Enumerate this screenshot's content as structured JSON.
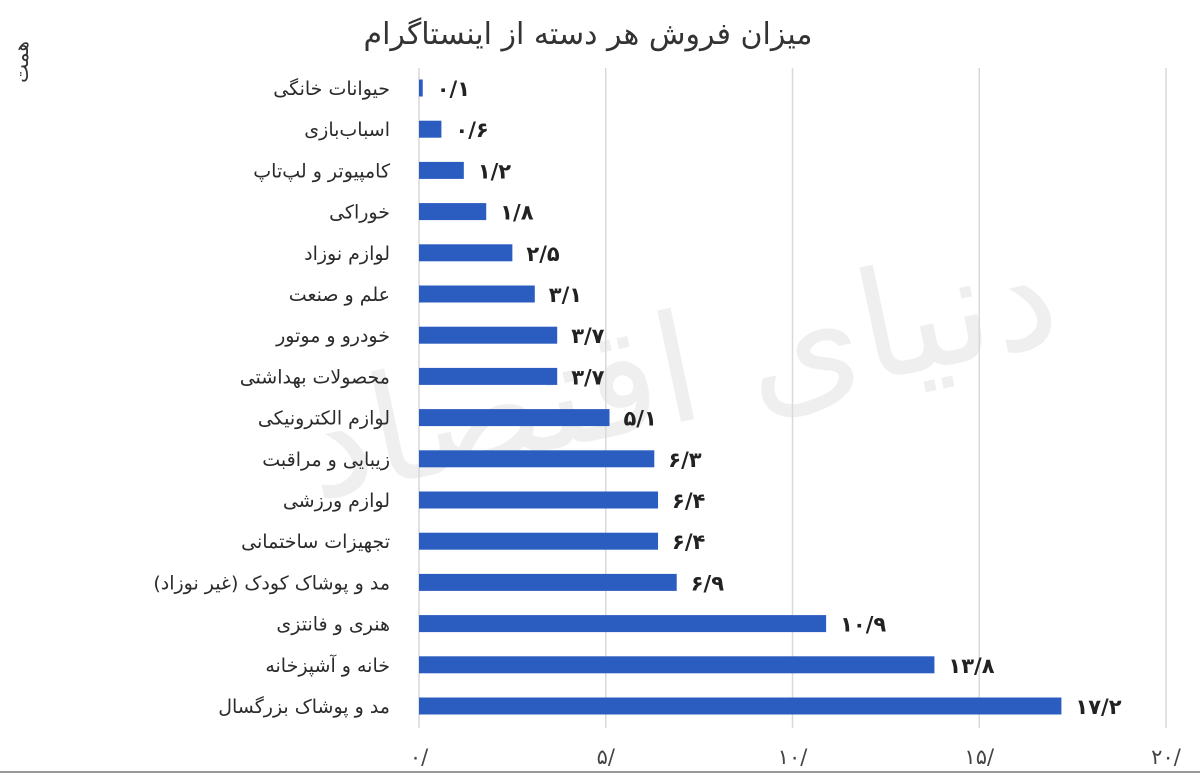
{
  "chart_data": {
    "type": "bar",
    "orientation": "horizontal",
    "title": "میزان فروش هر دسته از اینستاگرام",
    "unit_label": "همت",
    "categories": [
      "حیوانات خانگی",
      "اسباب‌بازی",
      "کامپیوتر و لپ‌تاپ",
      "خوراکی",
      "لوازم نوزاد",
      "علم و صنعت",
      "خودرو و موتور",
      "محصولات بهداشتی",
      "لوازم الکترونیکی",
      "زیبایی و مراقبت",
      "لوازم ورزشی",
      "تجهیزات ساختمانی",
      "مد و پوشاک کودک (غیر نوزاد)",
      "هنری و فانتزی",
      "خانه و آشپزخانه",
      "مد و پوشاک بزرگسال"
    ],
    "values": [
      0.1,
      0.6,
      1.2,
      1.8,
      2.5,
      3.1,
      3.7,
      3.7,
      5.1,
      6.3,
      6.4,
      6.4,
      6.9,
      10.9,
      13.8,
      17.2
    ],
    "value_labels": [
      "۰/۱",
      "۰/۶",
      "۱/۲",
      "۱/۸",
      "۲/۵",
      "۳/۱",
      "۳/۷",
      "۳/۷",
      "۵/۱",
      "۶/۳",
      "۶/۴",
      "۶/۴",
      "۶/۹",
      "۱۰/۹",
      "۱۳/۸",
      "۱۷/۲"
    ],
    "xlim": [
      0,
      20
    ],
    "ticks": [
      0,
      5,
      10,
      15,
      20
    ],
    "tick_labels": [
      "۰/",
      "۵/",
      "۱۰/",
      "۱۵/",
      "۲۰/"
    ],
    "grid": "vertical",
    "bar_color": "#2b5cc0",
    "grid_color": "#d9d9d9",
    "watermark": "دنیای اقتصاد"
  }
}
